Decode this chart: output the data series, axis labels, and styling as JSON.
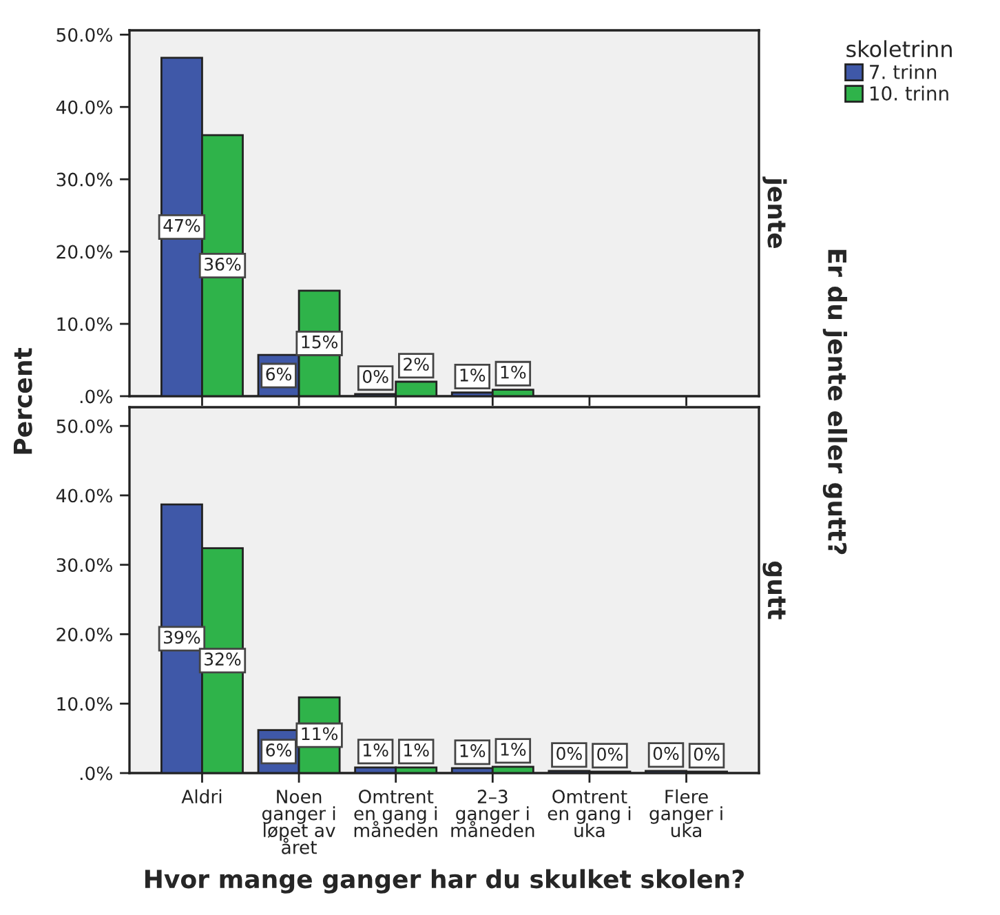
{
  "chart_data": [
    {
      "type": "bar",
      "title": "jente",
      "ylabel": "Percent",
      "y2label": "Er du jente eller gutt?",
      "legend_title": "skoletrinn",
      "legend": "top right",
      "grid": false,
      "tick_labels": "y",
      "ylim": [
        0,
        50.6
      ],
      "yticks": [
        {
          "value": 0,
          "label": ".0%"
        },
        {
          "value": 10,
          "label": "10.0%"
        },
        {
          "value": 20,
          "label": "20.0%"
        },
        {
          "value": 30,
          "label": "30.0%"
        },
        {
          "value": 40,
          "label": "40.0%"
        },
        {
          "value": 50,
          "label": "50.0%"
        }
      ],
      "series": [
        {
          "name": "7. trinn",
          "color": "#3f58a8",
          "values": [
            46.8,
            5.7,
            0.3,
            0.5,
            null,
            null
          ],
          "value_labels": [
            "47%",
            "6%",
            "0%",
            "1%",
            null,
            null
          ]
        },
        {
          "name": "10. trinn",
          "color": "#2fb34a",
          "values": [
            36.1,
            14.6,
            2.0,
            0.9,
            null,
            null
          ],
          "value_labels": [
            "36%",
            "15%",
            "2%",
            "1%",
            null,
            null
          ]
        }
      ]
    },
    {
      "type": "bar",
      "title": "gutt",
      "xlabel": "Hvor mange ganger har du skulket skolen?",
      "grid": false,
      "categories": [
        "Aldri",
        "Noen ganger i løpet av året",
        "Omtrent en gang i måneden",
        "2–3 ganger i måneden",
        "Omtrent en gang i uka",
        "Flere ganger i uka"
      ],
      "ylim": [
        0,
        52.7
      ],
      "yticks": [
        {
          "value": 0,
          "label": ".0%"
        },
        {
          "value": 10,
          "label": "10.0%"
        },
        {
          "value": 20,
          "label": "20.0%"
        },
        {
          "value": 30,
          "label": "30.0%"
        },
        {
          "value": 40,
          "label": "40.0%"
        },
        {
          "value": 50,
          "label": "50.0%"
        }
      ],
      "series": [
        {
          "color": "#3f58a8",
          "values": [
            38.7,
            6.2,
            0.8,
            0.7,
            0.3,
            0.3
          ],
          "value_labels": [
            "39%",
            "6%",
            "1%",
            "1%",
            "0%",
            "0%"
          ]
        },
        {
          "color": "#2fb34a",
          "values": [
            32.4,
            10.9,
            0.8,
            0.9,
            0.2,
            0.2
          ],
          "value_labels": [
            "32%",
            "11%",
            "1%",
            "1%",
            "0%",
            "0%"
          ]
        }
      ]
    }
  ]
}
